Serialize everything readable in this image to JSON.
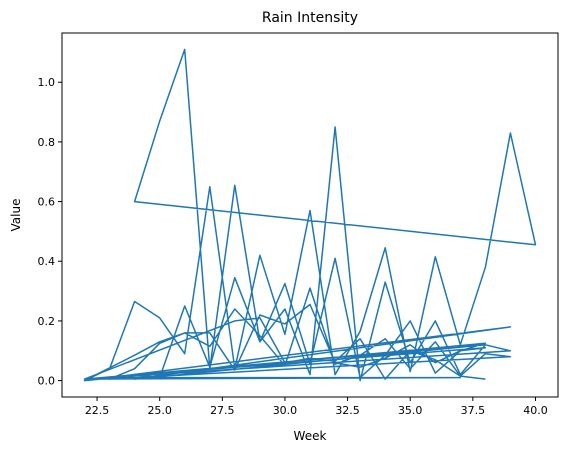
{
  "chart_data": {
    "type": "line",
    "title": "Rain Intensity",
    "xlabel": "Week",
    "ylabel": "Value",
    "xlim": [
      21.1,
      40.9
    ],
    "ylim": [
      -0.055,
      1.165
    ],
    "xticks": [
      "22.5",
      "25.0",
      "27.5",
      "30.0",
      "32.5",
      "35.0",
      "37.5",
      "40.0"
    ],
    "xtick_values": [
      22.5,
      25.0,
      27.5,
      30.0,
      32.5,
      35.0,
      37.5,
      40.0
    ],
    "yticks": [
      "0.0",
      "0.2",
      "0.4",
      "0.6",
      "0.8",
      "1.0"
    ],
    "ytick_values": [
      0.0,
      0.2,
      0.4,
      0.6,
      0.8,
      1.0
    ],
    "grid": false,
    "line_color": "#1f77b4",
    "series": [
      {
        "x": [
          22,
          23,
          24,
          25,
          26,
          27,
          28,
          29,
          30,
          31,
          32,
          33,
          34,
          35,
          36,
          37,
          38,
          39,
          40,
          24,
          25,
          26,
          27,
          28,
          29,
          30,
          31,
          32,
          33,
          34,
          35,
          36,
          37,
          38,
          39,
          23,
          24,
          25,
          26,
          27,
          28,
          29,
          30,
          31,
          32,
          33,
          34,
          35,
          36,
          37,
          38,
          22,
          24,
          25,
          26,
          27,
          28,
          29,
          30,
          31,
          32,
          33,
          34,
          35,
          36,
          37,
          38,
          39,
          23,
          24,
          25,
          26,
          27,
          28,
          29,
          30,
          31,
          32,
          33,
          34,
          35,
          36,
          37,
          38,
          22,
          38,
          24,
          39,
          23,
          37,
          22,
          28,
          29,
          30,
          31,
          32,
          33,
          34,
          35,
          36,
          37,
          38
        ],
        "y": [
          0.0,
          0.04,
          0.265,
          0.21,
          0.09,
          0.65,
          0.04,
          0.42,
          0.155,
          0.57,
          0.02,
          0.165,
          0.445,
          0.03,
          0.415,
          0.12,
          0.38,
          0.83,
          0.455,
          0.6,
          0.87,
          1.11,
          0.04,
          0.655,
          0.13,
          0.24,
          0.02,
          0.85,
          0.0,
          0.33,
          0.06,
          0.2,
          0.02,
          0.12,
          0.1,
          0.01,
          0.02,
          0.01,
          0.25,
          0.045,
          0.345,
          0.13,
          0.325,
          0.055,
          0.41,
          0.01,
          0.085,
          0.2,
          0.025,
          0.1,
          0.125,
          0.0,
          0.085,
          0.13,
          0.16,
          0.115,
          0.24,
          0.15,
          0.05,
          0.31,
          0.055,
          0.085,
          0.14,
          0.04,
          0.13,
          0.015,
          0.09,
          0.08,
          0.005,
          0.04,
          0.125,
          0.16,
          0.16,
          0.035,
          0.22,
          0.19,
          0.255,
          0.06,
          0.045,
          0.075,
          0.12,
          0.06,
          0.1,
          0.11,
          0.005,
          0.12,
          0.005,
          0.18,
          0.01,
          0.01,
          0.005,
          0.2,
          0.21,
          0.06,
          0.075,
          0.065,
          0.14,
          0.005,
          0.1,
          0.07,
          0.015,
          0.005
        ]
      }
    ]
  }
}
